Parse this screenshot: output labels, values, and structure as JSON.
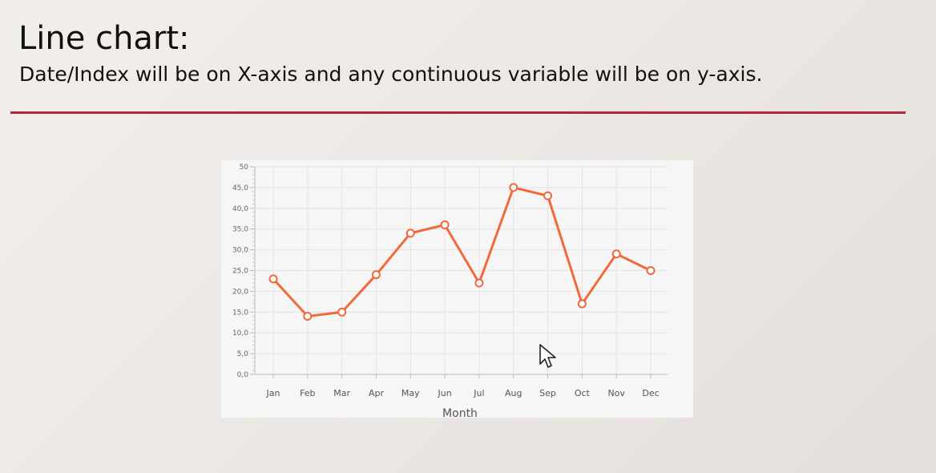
{
  "slide": {
    "title": "Line chart:",
    "subtitle": "Date/Index will be on X-axis and any continuous variable will be on y-axis."
  },
  "colors": {
    "accent_line": "#b8243f",
    "series": "#f06a3b"
  },
  "chart_data": {
    "type": "line",
    "categories": [
      "Jan",
      "Feb",
      "Mar",
      "Apr",
      "May",
      "Jun",
      "Jul",
      "Aug",
      "Sep",
      "Oct",
      "Nov",
      "Dec"
    ],
    "series": [
      {
        "values": [
          23,
          14,
          15,
          24,
          34,
          36,
          22,
          45,
          43,
          17,
          29,
          25
        ]
      }
    ],
    "yticks": [
      "0,0",
      "5,0",
      "10,0",
      "15,0",
      "20,0",
      "25,0",
      "30,0",
      "35,0",
      "40,0",
      "45,0",
      "50"
    ],
    "ylim": [
      0,
      50
    ],
    "xlabel": "Month",
    "ylabel": "",
    "grid": true,
    "legend": "none"
  }
}
